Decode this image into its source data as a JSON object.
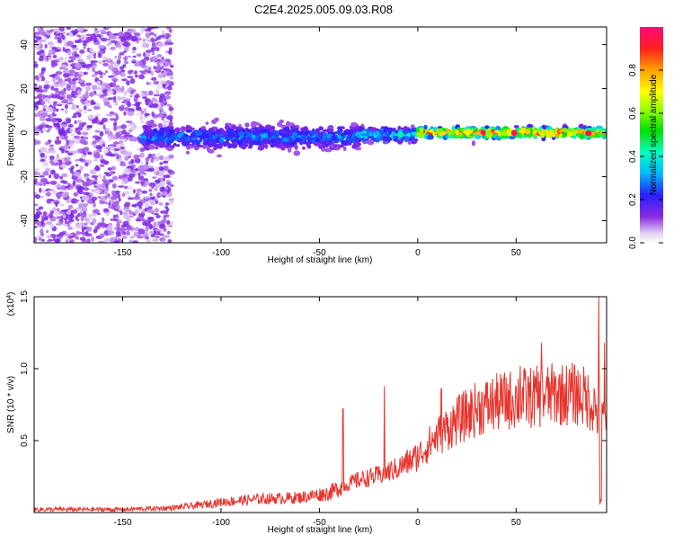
{
  "title": "C2E4.2025.005.09.03.R08",
  "colors": {
    "snr_line": "#e8332c",
    "noise_points": "#8a2be2",
    "axis": "#000000",
    "background": "#ffffff"
  },
  "chart_data": [
    {
      "type": "heatmap",
      "xlabel": "Height of straight line (km)",
      "ylabel": "Frequency (Hz)",
      "xlim": [
        -195,
        96
      ],
      "ylim": [
        -50,
        48
      ],
      "xticks": [
        -150,
        -100,
        -50,
        0,
        50
      ],
      "xtick_labels": [
        "-150",
        "-100",
        "-50",
        "0",
        "50"
      ],
      "yticks": [
        -40,
        -20,
        0,
        20,
        40
      ],
      "ytick_labels": [
        "-40",
        "-20",
        "0",
        "20",
        "40"
      ],
      "colorbar": {
        "label": "Normalized spectral amplitude",
        "range": [
          0,
          1
        ],
        "ticks": [
          0.0,
          0.2,
          0.4,
          0.6,
          0.8
        ],
        "tick_labels": [
          "0.0",
          "0.2",
          "0.4",
          "0.6",
          "0.8"
        ],
        "colormap": "rainbow"
      },
      "regions": [
        {
          "x_range": [
            -195,
            -125
          ],
          "freq_range": [
            -50,
            48
          ],
          "amplitude": 0.05,
          "description_note": "scattered low amplitude"
        },
        {
          "x_range": [
            -140,
            -30
          ],
          "freq_center": -2,
          "freq_spread": 5,
          "amplitude": 0.3
        },
        {
          "x_range": [
            -30,
            0
          ],
          "freq_center": -1,
          "freq_spread": 3,
          "amplitude": 0.4
        },
        {
          "x_range": [
            0,
            96
          ],
          "freq_center": 0,
          "freq_spread": 2,
          "amplitude": 0.95
        }
      ]
    },
    {
      "type": "line",
      "xlabel": "Height of straight line (km)",
      "ylabel": "SNR (10 * v/v)",
      "ylabel_multiplier": "(x10",
      "ylabel_exponent": "4",
      "ylabel_close": ")",
      "xlim": [
        -195,
        96
      ],
      "ylim": [
        0,
        1.5
      ],
      "xticks": [
        -150,
        -100,
        -50,
        0,
        50
      ],
      "xtick_labels": [
        "-150",
        "-100",
        "-50",
        "0",
        "50"
      ],
      "yticks": [
        0.5,
        1.0,
        1.5
      ],
      "ytick_labels": [
        "0.5",
        "1.0",
        "1.5"
      ],
      "series": [
        {
          "trend_x": [
            -195,
            -150,
            -125,
            -110,
            -100,
            -80,
            -60,
            -45,
            -38,
            -30,
            -20,
            -10,
            0,
            5,
            10,
            15,
            20,
            30,
            40,
            50,
            60,
            70,
            80,
            85,
            90,
            93,
            96
          ],
          "trend_y": [
            0.02,
            0.02,
            0.03,
            0.05,
            0.07,
            0.09,
            0.1,
            0.13,
            0.18,
            0.22,
            0.25,
            0.3,
            0.38,
            0.45,
            0.52,
            0.57,
            0.62,
            0.7,
            0.74,
            0.77,
            0.78,
            0.8,
            0.8,
            0.78,
            0.72,
            0.6,
            0.7
          ]
        }
      ],
      "spikes": [
        {
          "x": -38,
          "y": 0.72
        },
        {
          "x": -17,
          "y": 0.88
        },
        {
          "x": 12,
          "y": 0.86
        },
        {
          "x": 52,
          "y": 1.02
        },
        {
          "x": 63,
          "y": 1.18
        },
        {
          "x": 92,
          "y": 1.5
        },
        {
          "x": 95,
          "y": 1.18
        }
      ]
    }
  ]
}
